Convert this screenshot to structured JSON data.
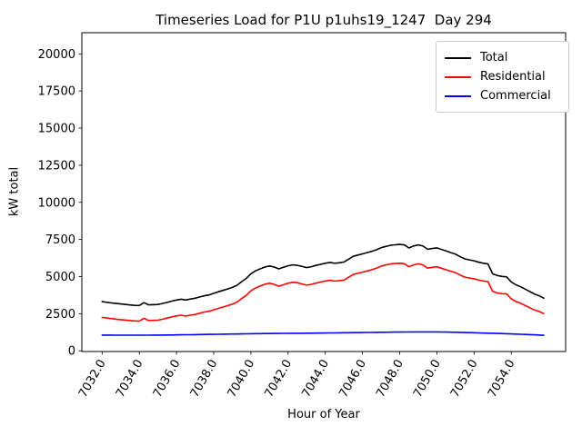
{
  "chart_data": {
    "type": "line",
    "title": "Timeseries Load for P1U p1uhs19_1247  Day 294",
    "xlabel": "Hour of Year",
    "ylabel": "kW total",
    "grid": false,
    "legend_position": "upper right",
    "x_start": 7032.0,
    "x_step": 0.25,
    "xlim": [
      7030.9,
      7056.9
    ],
    "ylim": [
      0,
      21400
    ],
    "xtick_values": [
      7032,
      7034,
      7036,
      7038,
      7040,
      7042,
      7044,
      7046,
      7048,
      7050,
      7052,
      7054
    ],
    "xtick_labels": [
      "7032.0",
      "7034.0",
      "7036.0",
      "7038.0",
      "7040.0",
      "7042.0",
      "7044.0",
      "7046.0",
      "7048.0",
      "7050.0",
      "7052.0",
      "7054.0"
    ],
    "xtick_rotation_deg": 60,
    "ytick_values": [
      0,
      2500,
      5000,
      7500,
      10000,
      12500,
      15000,
      17500,
      20000
    ],
    "ytick_labels": [
      "0",
      "2500",
      "5000",
      "7500",
      "10000",
      "12500",
      "15000",
      "17500",
      "20000"
    ],
    "series": [
      {
        "name": "Total",
        "color": "#000000",
        "values": [
          3310,
          3268,
          3226,
          3185,
          3154,
          3123,
          3092,
          3061,
          3050,
          3242,
          3094,
          3106,
          3118,
          3190,
          3263,
          3346,
          3420,
          3475,
          3420,
          3485,
          3540,
          3625,
          3710,
          3765,
          3870,
          3975,
          4070,
          4165,
          4270,
          4414,
          4658,
          4874,
          5190,
          5384,
          5518,
          5641,
          5715,
          5638,
          5520,
          5622,
          5725,
          5788,
          5760,
          5683,
          5605,
          5668,
          5750,
          5825,
          5900,
          5954,
          5898,
          5931,
          5975,
          6169,
          6362,
          6446,
          6530,
          6614,
          6698,
          6802,
          6946,
          7030,
          7104,
          7138,
          7162,
          7135,
          6928,
          7060,
          7132,
          7053,
          6842,
          6891,
          6930,
          6826,
          6722,
          6615,
          6508,
          6340,
          6192,
          6124,
          6065,
          5965,
          5896,
          5848,
          5180,
          5070,
          5010,
          4980,
          4640,
          4448,
          4315,
          4153,
          3990,
          3825,
          3710,
          3545
        ]
      },
      {
        "name": "Residential",
        "color": "#ff0000",
        "values": [
          2250,
          2210,
          2170,
          2130,
          2100,
          2070,
          2040,
          2010,
          2000,
          2190,
          2040,
          2050,
          2060,
          2130,
          2200,
          2280,
          2350,
          2400,
          2340,
          2400,
          2450,
          2530,
          2610,
          2660,
          2760,
          2860,
          2950,
          3040,
          3140,
          3280,
          3520,
          3730,
          4040,
          4230,
          4360,
          4480,
          4550,
          4470,
          4350,
          4450,
          4550,
          4610,
          4580,
          4500,
          4420,
          4480,
          4560,
          4630,
          4700,
          4750,
          4690,
          4720,
          4760,
          4950,
          5140,
          5220,
          5300,
          5380,
          5460,
          5560,
          5700,
          5780,
          5850,
          5880,
          5900,
          5870,
          5660,
          5790,
          5860,
          5780,
          5570,
          5620,
          5660,
          5560,
          5460,
          5360,
          5260,
          5100,
          4960,
          4900,
          4850,
          4760,
          4700,
          4660,
          4000,
          3900,
          3850,
          3830,
          3500,
          3320,
          3200,
          3050,
          2900,
          2750,
          2650,
          2500
        ]
      },
      {
        "name": "Commercial",
        "color": "#0000ff",
        "values": [
          1060,
          1058,
          1056,
          1055,
          1054,
          1053,
          1052,
          1051,
          1050,
          1052,
          1054,
          1056,
          1058,
          1060,
          1063,
          1066,
          1070,
          1075,
          1080,
          1085,
          1090,
          1095,
          1100,
          1105,
          1110,
          1115,
          1120,
          1125,
          1130,
          1134,
          1138,
          1144,
          1150,
          1154,
          1158,
          1161,
          1165,
          1168,
          1170,
          1172,
          1175,
          1178,
          1180,
          1183,
          1185,
          1188,
          1190,
          1195,
          1200,
          1204,
          1208,
          1211,
          1215,
          1219,
          1222,
          1226,
          1230,
          1234,
          1238,
          1242,
          1246,
          1250,
          1254,
          1258,
          1262,
          1265,
          1268,
          1270,
          1272,
          1273,
          1272,
          1271,
          1270,
          1266,
          1262,
          1255,
          1248,
          1240,
          1232,
          1224,
          1215,
          1205,
          1196,
          1188,
          1180,
          1170,
          1160,
          1150,
          1140,
          1128,
          1115,
          1103,
          1090,
          1075,
          1060,
          1045
        ]
      }
    ]
  }
}
